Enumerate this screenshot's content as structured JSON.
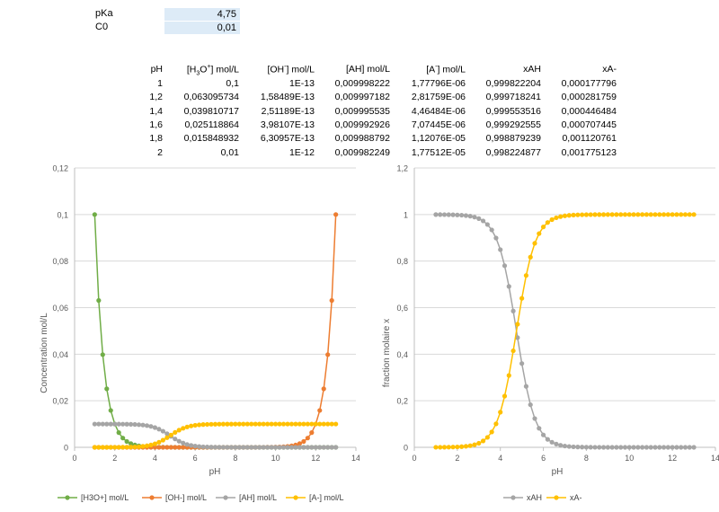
{
  "params": {
    "pka_label": "pKa",
    "pka_value": "4,75",
    "c0_label": "C0",
    "c0_value": "0,01"
  },
  "table": {
    "headers": {
      "ph": "pH",
      "h3o_pre": "[H",
      "h3o_sub": "3",
      "h3o_mid": "O",
      "h3o_sup": "+",
      "h3o_post": "] mol/L",
      "oh_pre": "[OH",
      "oh_sup": "-",
      "oh_post": "] mol/L",
      "ah": "[AH] mol/L",
      "a_pre": "[A",
      "a_sup": "-",
      "a_post": "] mol/L",
      "xah": "xAH",
      "xa": "xA-"
    },
    "rows": [
      [
        "1",
        "0,1",
        "1E-13",
        "0,009998222",
        "1,77796E-06",
        "0,999822204",
        "0,000177796"
      ],
      [
        "1,2",
        "0,063095734",
        "1,58489E-13",
        "0,009997182",
        "2,81759E-06",
        "0,999718241",
        "0,000281759"
      ],
      [
        "1,4",
        "0,039810717",
        "2,51189E-13",
        "0,009995535",
        "4,46484E-06",
        "0,999553516",
        "0,000446484"
      ],
      [
        "1,6",
        "0,025118864",
        "3,98107E-13",
        "0,009992926",
        "7,07445E-06",
        "0,999292555",
        "0,000707445"
      ],
      [
        "1,8",
        "0,015848932",
        "6,30957E-13",
        "0,009988792",
        "1,12076E-05",
        "0,998879239",
        "0,001120761"
      ],
      [
        "2",
        "0,01",
        "1E-12",
        "0,009982249",
        "1,77512E-05",
        "0,998224877",
        "0,001775123"
      ]
    ]
  },
  "chart_data": [
    {
      "type": "scatter",
      "xlabel": "pH",
      "ylabel": "Concentration mol/L",
      "xlim": [
        0,
        14
      ],
      "ylim": [
        0,
        0.12
      ],
      "xticks": [
        "0",
        "2",
        "4",
        "6",
        "8",
        "10",
        "12",
        "14"
      ],
      "yticks": [
        "0",
        "0,02",
        "0,04",
        "0,06",
        "0,08",
        "0,1",
        "0,12"
      ],
      "grid": "horizontal",
      "legend_position": "bottom",
      "x_series": {
        "start": 1,
        "end": 13,
        "step": 0.2
      },
      "params": {
        "pKa": 4.75,
        "C0": 0.01
      },
      "series": [
        {
          "name": "[H3O+] mol/L",
          "color": "#70ad47",
          "formula": "10^(-pH)"
        },
        {
          "name": "[OH-] mol/L",
          "color": "#ed7d31",
          "formula": "10^(pH-14)"
        },
        {
          "name": "[AH] mol/L",
          "color": "#a5a5a5",
          "formula": "C0/(1+10^(pH-pKa))"
        },
        {
          "name": "[A-] mol/L",
          "color": "#ffc000",
          "formula": "C0 - C0/(1+10^(pH-pKa))"
        }
      ]
    },
    {
      "type": "scatter",
      "xlabel": "pH",
      "ylabel": "fraction molaire x",
      "xlim": [
        0,
        14
      ],
      "ylim": [
        0,
        1.2
      ],
      "xticks": [
        "0",
        "2",
        "4",
        "6",
        "8",
        "10",
        "12",
        "14"
      ],
      "yticks": [
        "0",
        "0,2",
        "0,4",
        "0,6",
        "0,8",
        "1",
        "1,2"
      ],
      "grid": "horizontal",
      "legend_position": "bottom",
      "x_series": {
        "start": 1,
        "end": 13,
        "step": 0.2
      },
      "params": {
        "pKa": 4.75
      },
      "series": [
        {
          "name": "xAH",
          "color": "#a5a5a5",
          "formula": "1/(1+10^(pH-pKa))"
        },
        {
          "name": "xA-",
          "color": "#ffc000",
          "formula": "1 - 1/(1+10^(pH-pKa))"
        }
      ]
    }
  ]
}
